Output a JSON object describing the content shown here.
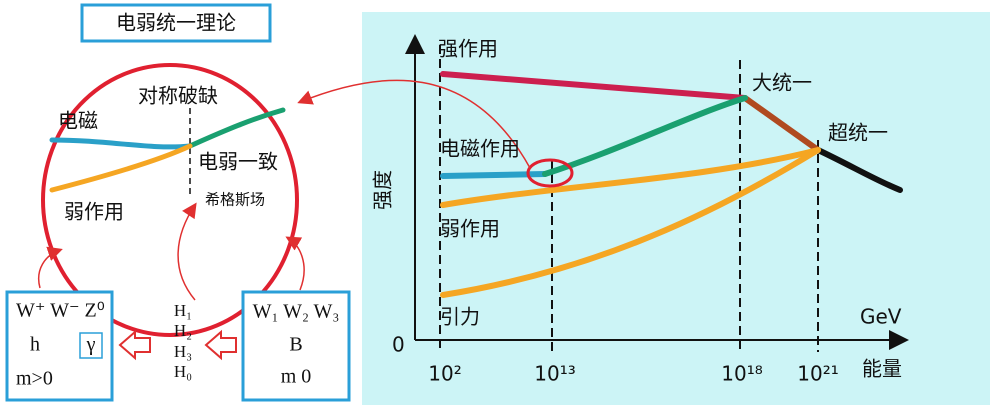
{
  "title": "电弱统一理论",
  "circle": {
    "symmetry_breaking": "对称破缺",
    "electromagnetic": "电磁",
    "electroweak": "电弱一致",
    "higgs_field": "希格斯场",
    "weak": "弱作用"
  },
  "boxes": {
    "broken": {
      "line1": "W⁺ W⁻ Z⁰",
      "h": "h",
      "gamma": "γ",
      "mass": "m>0"
    },
    "higgs": [
      "H₁",
      "H₂",
      "H₃",
      "H₀"
    ],
    "unbroken": {
      "line1": "W₁ W₂ W₃",
      "line2": "B",
      "mass": "m 0"
    }
  },
  "graph": {
    "y_label": "强度",
    "x_unit": "GeV",
    "x_label": "能量",
    "origin": "0",
    "ticks": [
      "10²",
      "10¹³",
      "10¹⁸",
      "10²¹"
    ],
    "labels": {
      "strong": "强作用",
      "grand_unification": "大统一",
      "electromagnetic": "电磁作用",
      "super_unification": "超统一",
      "weak": "弱作用",
      "gravity": "引力"
    }
  }
}
